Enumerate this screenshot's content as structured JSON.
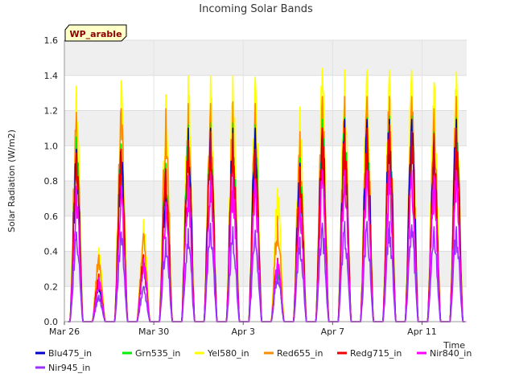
{
  "chart_data": {
    "type": "line",
    "title": "Incoming Solar Bands",
    "xlabel": "Time",
    "ylabel": "Solar Radiation (W/m2)",
    "ylim": [
      0,
      1.6
    ],
    "yticks": [
      "0.0",
      "0.2",
      "0.4",
      "0.6",
      "0.8",
      "1.0",
      "1.2",
      "1.4",
      "1.6"
    ],
    "x_range": [
      "2023-03-26",
      "2023-04-13"
    ],
    "xticks": [
      {
        "label": "Mar 26",
        "date": "2023-03-26"
      },
      {
        "label": "Mar 30",
        "date": "2023-03-30"
      },
      {
        "label": "Apr 3",
        "date": "2023-04-03"
      },
      {
        "label": "Apr 7",
        "date": "2023-04-07"
      },
      {
        "label": "Apr 11",
        "date": "2023-04-11"
      }
    ],
    "grid": true,
    "badge": "WP_arable",
    "legend_position": "bottom",
    "daily_peak_dates": [
      "2023-03-26",
      "2023-03-27",
      "2023-03-28",
      "2023-03-29",
      "2023-03-30",
      "2023-03-31",
      "2023-04-01",
      "2023-04-02",
      "2023-04-03",
      "2023-04-04",
      "2023-04-05",
      "2023-04-06",
      "2023-04-07",
      "2023-04-08",
      "2023-04-09",
      "2023-04-10",
      "2023-04-11",
      "2023-04-12"
    ],
    "series": [
      {
        "name": "Blu475_in",
        "color": "#0000cc",
        "daily_peaks": [
          0.98,
          0.22,
          0.98,
          0.34,
          0.86,
          1.1,
          1.1,
          1.1,
          1.1,
          0.3,
          0.9,
          1.1,
          1.15,
          1.15,
          1.15,
          1.15,
          1.05,
          1.15
        ]
      },
      {
        "name": "Grn535_in",
        "color": "#00ee00",
        "daily_peaks": [
          1.05,
          0.24,
          1.01,
          0.36,
          0.9,
          1.12,
          1.13,
          1.13,
          1.12,
          0.32,
          0.93,
          1.15,
          1.16,
          1.16,
          1.17,
          1.17,
          1.08,
          1.16
        ]
      },
      {
        "name": "Yel580_in",
        "color": "#ffff00",
        "daily_peaks": [
          1.34,
          0.42,
          1.37,
          0.58,
          1.29,
          1.4,
          1.4,
          1.4,
          1.39,
          0.76,
          1.22,
          1.44,
          1.43,
          1.43,
          1.43,
          1.43,
          1.36,
          1.42
        ]
      },
      {
        "name": "Red655_in",
        "color": "#ff8c00",
        "daily_peaks": [
          1.19,
          0.38,
          1.21,
          0.5,
          1.21,
          1.24,
          1.24,
          1.25,
          1.24,
          0.6,
          1.08,
          1.28,
          1.28,
          1.28,
          1.28,
          1.28,
          1.21,
          1.28
        ]
      },
      {
        "name": "Redg715_in",
        "color": "#ee0000",
        "daily_peaks": [
          0.96,
          0.27,
          0.98,
          0.38,
          0.87,
          1.03,
          1.08,
          1.07,
          0.98,
          0.36,
          0.88,
          1.1,
          1.1,
          1.1,
          1.12,
          1.08,
          1.07,
          1.1
        ]
      },
      {
        "name": "Nir840_in",
        "color": "#ff00ff",
        "daily_peaks": [
          0.77,
          0.25,
          0.77,
          0.36,
          0.68,
          0.83,
          0.85,
          0.84,
          0.81,
          0.35,
          0.7,
          0.86,
          0.86,
          0.86,
          0.86,
          0.86,
          0.83,
          0.86
        ]
      },
      {
        "name": "Nir945_in",
        "color": "#9b30ff",
        "daily_peaks": [
          0.51,
          0.15,
          0.51,
          0.2,
          0.48,
          0.53,
          0.56,
          0.54,
          0.52,
          0.3,
          0.48,
          0.56,
          0.57,
          0.57,
          0.57,
          0.55,
          0.54,
          0.54
        ]
      }
    ]
  }
}
